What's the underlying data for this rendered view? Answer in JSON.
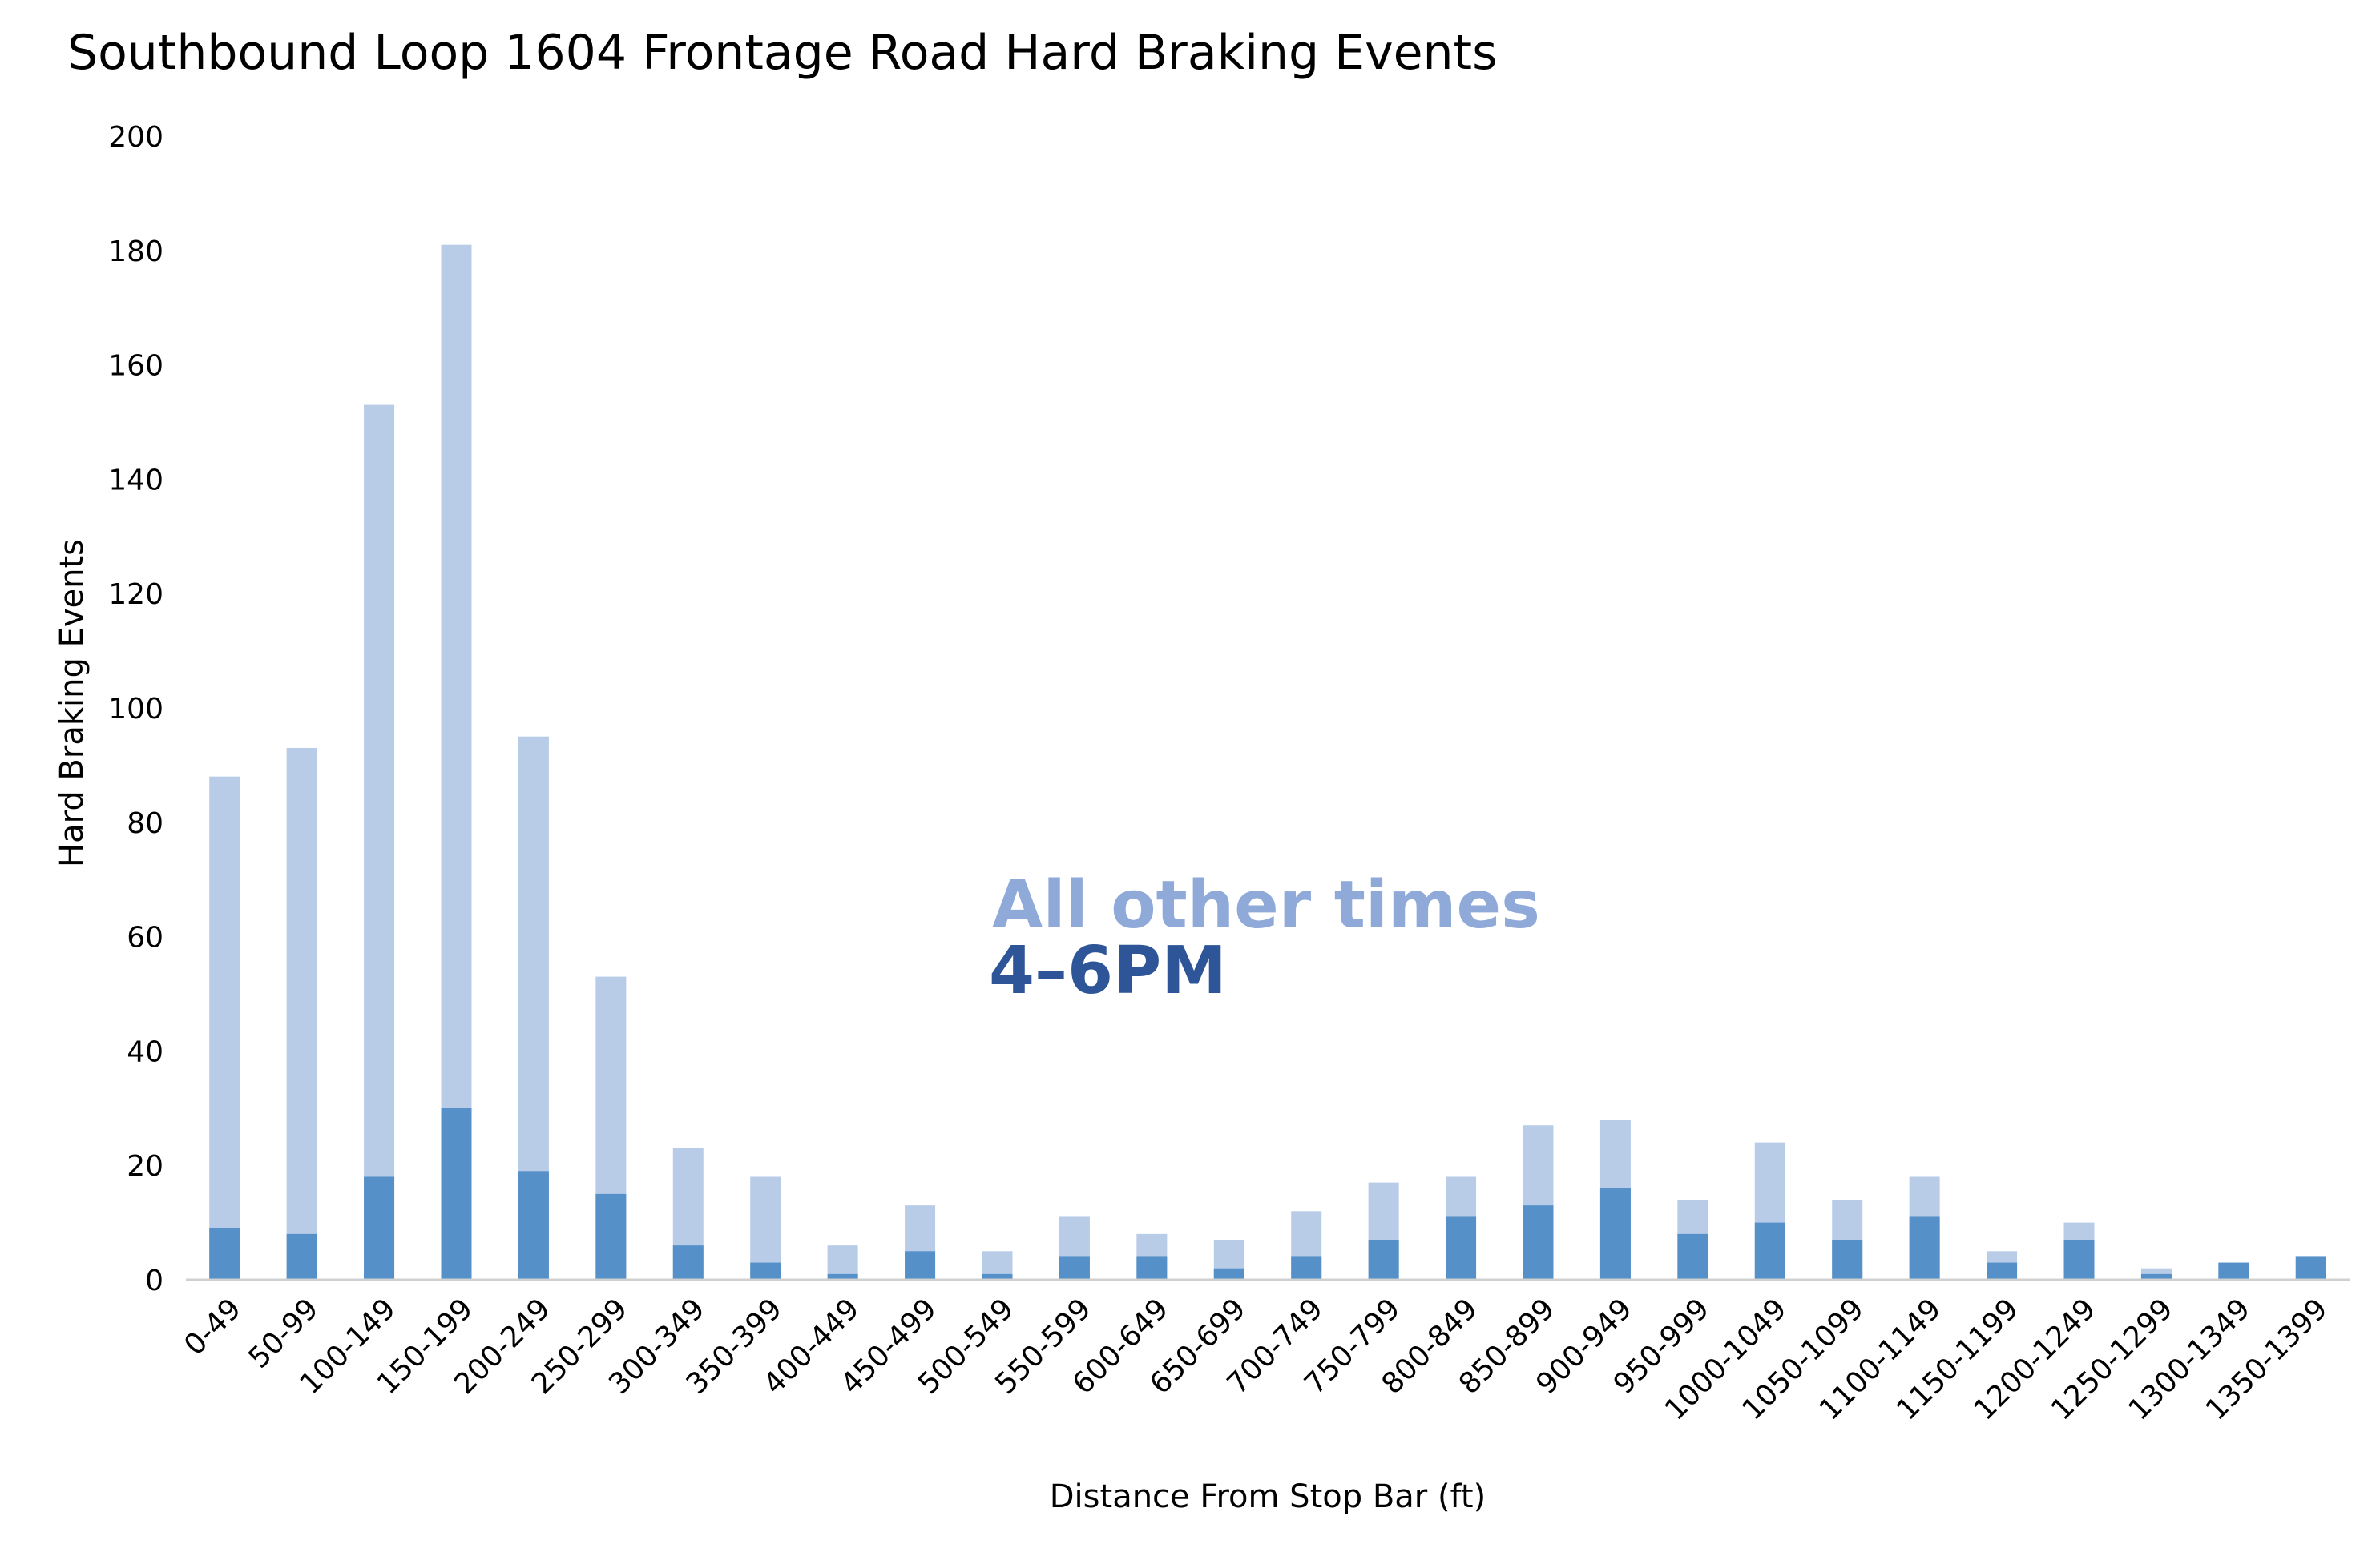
{
  "chart_data": {
    "type": "bar",
    "title": "Southbound Loop 1604 Frontage Road Hard Braking Events",
    "xlabel": "Distance From Stop Bar (ft)",
    "ylabel": "Hard Braking Events",
    "ylim": [
      0,
      200
    ],
    "yticks": [
      0,
      20,
      40,
      60,
      80,
      100,
      120,
      140,
      160,
      180,
      200
    ],
    "grid": false,
    "stacked": false,
    "categories": [
      "0-49",
      "50-99",
      "100-149",
      "150-199",
      "200-249",
      "250-299",
      "300-349",
      "350-399",
      "400-449",
      "450-499",
      "500-549",
      "550-599",
      "600-649",
      "650-699",
      "700-749",
      "750-799",
      "800-849",
      "850-899",
      "900-949",
      "950-999",
      "1000-1049",
      "1050-1099",
      "1100-1149",
      "1150-1199",
      "1200-1249",
      "1250-1299",
      "1300-1349",
      "1350-1399"
    ],
    "series": [
      {
        "name": "All other times",
        "color": "#b8cce8",
        "values": [
          88,
          93,
          153,
          181,
          95,
          53,
          23,
          18,
          6,
          13,
          5,
          11,
          8,
          7,
          12,
          17,
          18,
          27,
          28,
          14,
          24,
          14,
          18,
          5,
          10,
          2,
          3,
          4
        ]
      },
      {
        "name": "4-6PM",
        "color": "#5590c8",
        "values": [
          9,
          8,
          18,
          30,
          19,
          15,
          6,
          3,
          1,
          5,
          1,
          4,
          4,
          2,
          4,
          7,
          11,
          13,
          16,
          8,
          10,
          7,
          11,
          3,
          7,
          1,
          3,
          4
        ]
      }
    ],
    "annotations": [
      {
        "text": "All other times",
        "color": "#8fa9d9"
      },
      {
        "text": "4–6PM",
        "color": "#2e5597"
      }
    ]
  }
}
